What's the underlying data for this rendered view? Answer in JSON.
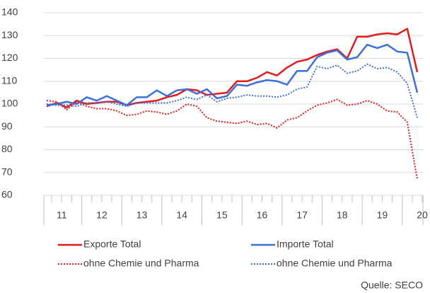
{
  "chart_data": {
    "type": "line",
    "categories": [
      "11",
      null,
      null,
      null,
      "12",
      null,
      null,
      null,
      "13",
      null,
      null,
      null,
      "14",
      null,
      null,
      null,
      "15",
      null,
      null,
      null,
      "16",
      null,
      null,
      null,
      "17",
      null,
      null,
      null,
      "18",
      null,
      null,
      null,
      "19",
      null,
      null,
      null,
      "20",
      null
    ],
    "series": [
      {
        "name": "Exporte Total",
        "color": "#e41a1a",
        "style": "solid",
        "values": [
          99,
          100.5,
          98.5,
          101.5,
          100,
          100.5,
          101,
          101,
          99.5,
          100.5,
          101,
          101.5,
          103,
          104,
          106.5,
          106,
          104,
          104.5,
          105,
          110,
          110,
          111.5,
          114,
          112.5,
          116,
          118.5,
          119.5,
          121.5,
          123,
          124,
          120,
          129.5,
          129.5,
          130.5,
          131,
          130.5,
          133,
          114
        ]
      },
      {
        "name": "Importe Total",
        "color": "#3b6fd9",
        "style": "solid",
        "values": [
          99.5,
          100,
          101,
          100,
          103,
          101.5,
          103.5,
          101.5,
          99.5,
          103,
          103,
          106,
          103.5,
          106,
          106.5,
          104.5,
          106.5,
          102.5,
          103.5,
          108.5,
          108,
          109.5,
          110.5,
          110,
          108.5,
          114.5,
          114.5,
          120.5,
          122.5,
          123.5,
          119.5,
          120.5,
          126,
          124.5,
          126,
          123,
          122.5,
          105
        ]
      },
      {
        "name": "ohne Chemie und Pharma",
        "color": "#e41a1a",
        "style": "dotted",
        "values": [
          101.5,
          101,
          97.5,
          101,
          99,
          98,
          98,
          97,
          95,
          95.5,
          97,
          96.5,
          95.5,
          97,
          100,
          99,
          94,
          92.5,
          92,
          91.5,
          92.5,
          91,
          91.5,
          89.5,
          93,
          94,
          97,
          99.5,
          100.5,
          102,
          99.5,
          100,
          101.5,
          100,
          97,
          96.5,
          92,
          67
        ]
      },
      {
        "name": "ohne Chemie und Pharma",
        "color": "#3b6fd9",
        "style": "dotted",
        "values": [
          100,
          99.5,
          99.5,
          99,
          100.5,
          100.5,
          101,
          100,
          99,
          100.5,
          100.5,
          100.5,
          100.5,
          101.5,
          103,
          102,
          104,
          101,
          102.5,
          103,
          104,
          103.5,
          103.5,
          103,
          104,
          106.5,
          107.5,
          116.5,
          115.5,
          117,
          113.5,
          114.5,
          117.5,
          115.5,
          116,
          114,
          109,
          94
        ]
      }
    ],
    "ylim": [
      60,
      140
    ],
    "yticks": [
      60,
      70,
      80,
      90,
      100,
      110,
      120,
      130,
      140
    ],
    "grid": true,
    "legend": "bottom",
    "source": "Quelle: SECO"
  }
}
